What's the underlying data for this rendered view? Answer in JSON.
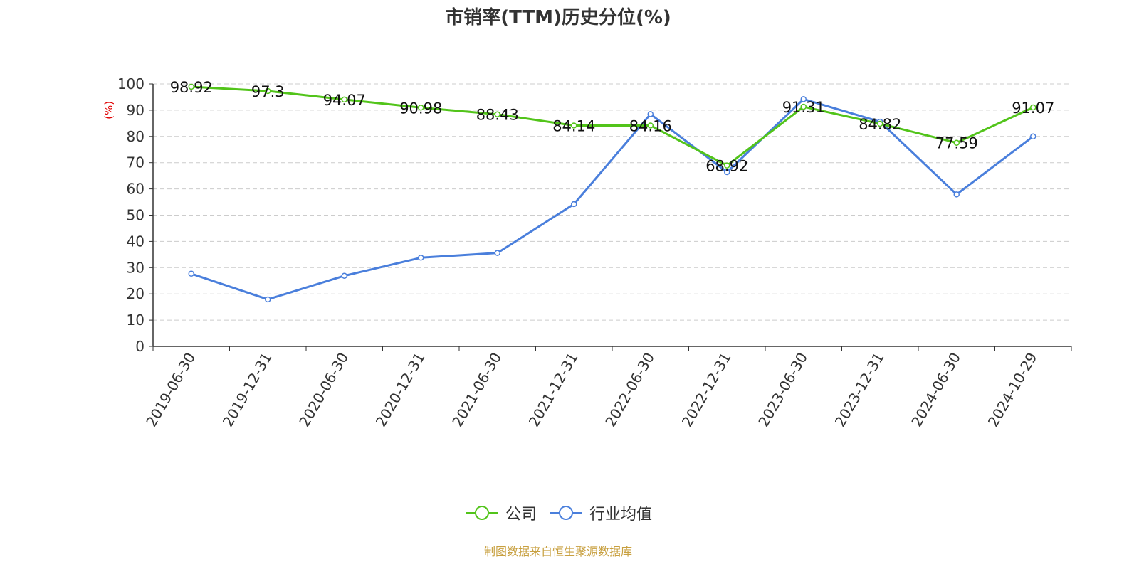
{
  "chart_data": {
    "type": "line",
    "title": "市销率(TTM)历史分位(%)",
    "ylabel": "(%)",
    "xlabel": "",
    "ylim": [
      0,
      100
    ],
    "yticks": [
      0,
      10,
      20,
      30,
      40,
      50,
      60,
      70,
      80,
      90,
      100
    ],
    "grid": true,
    "legend_position": "bottom",
    "categories": [
      "2019-06-30",
      "2019-12-31",
      "2020-06-30",
      "2020-12-31",
      "2021-06-30",
      "2021-12-31",
      "2022-06-30",
      "2022-12-31",
      "2023-06-30",
      "2023-12-31",
      "2024-06-30",
      "2024-10-29"
    ],
    "series": [
      {
        "name": "公司",
        "color": "#52c41a",
        "show_labels": true,
        "values": [
          98.92,
          97.3,
          94.07,
          90.98,
          88.43,
          84.14,
          84.16,
          68.92,
          91.31,
          84.82,
          77.59,
          91.07
        ]
      },
      {
        "name": "行业均值",
        "color": "#4a7fdc",
        "show_labels": false,
        "values": [
          27.7,
          17.9,
          26.9,
          33.8,
          35.6,
          54.2,
          88.5,
          66.4,
          94.2,
          85.6,
          57.9,
          80.0
        ]
      }
    ]
  },
  "source_note": "制图数据来自恒生聚源数据库"
}
